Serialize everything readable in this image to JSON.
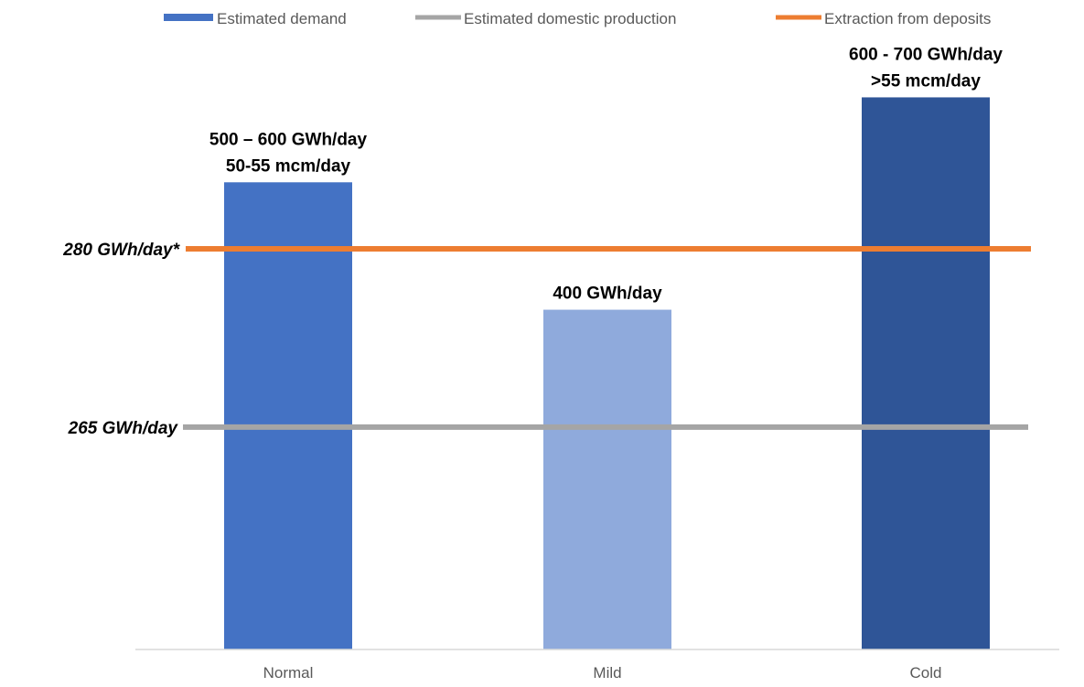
{
  "chart_data": {
    "type": "bar",
    "title": "",
    "xlabel": "",
    "ylabel": "",
    "categories": [
      "Normal",
      "Mild",
      "Cold"
    ],
    "values": [
      550,
      400,
      650
    ],
    "bar_colors": [
      "#4472C4",
      "#8FAADC",
      "#2F5597"
    ],
    "data_labels": [
      [
        "500 – 600 GWh/day",
        "50-55 mcm/day"
      ],
      [
        "400 GWh/day"
      ],
      [
        "600 - 700 GWh/day",
        ">55 mcm/day"
      ]
    ],
    "ylim": [
      0,
      700
    ],
    "grid": false,
    "legend_position": "top",
    "legend": [
      {
        "label": "Estimated demand",
        "symbol": "bar",
        "color": "#4472C4"
      },
      {
        "label": "Estimated domestic production",
        "symbol": "line",
        "color": "#A5A5A5"
      },
      {
        "label": "Extraction from deposits",
        "symbol": "line",
        "color": "#ED7D31"
      }
    ],
    "reference_lines": [
      {
        "name": "Estimated domestic production",
        "value": 265,
        "label": "265 GWh/day",
        "color": "#A5A5A5"
      },
      {
        "name": "Extraction from deposits",
        "value": 280,
        "label": "280 GWh/day*",
        "color": "#ED7D31"
      }
    ]
  }
}
